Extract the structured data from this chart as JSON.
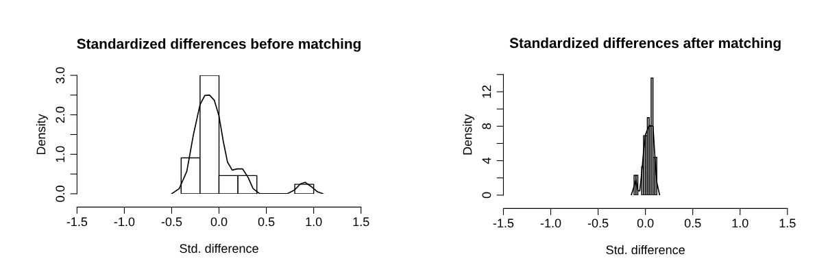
{
  "chart_data": [
    {
      "type": "histogram",
      "title": "Standardized differences before matching",
      "xlabel": "Std. difference",
      "ylabel": "Density",
      "bins": [
        -0.4,
        -0.2,
        0.0,
        0.2,
        0.4,
        0.6,
        0.8,
        1.0
      ],
      "values": [
        0.91,
        3.0,
        0.46,
        0.46,
        0,
        0,
        0.24
      ],
      "color": "#ffffff",
      "series": [
        {
          "type": "line",
          "color": "#000000",
          "x": [
            -0.5,
            -0.42,
            -0.34,
            -0.27,
            -0.2,
            -0.15,
            -0.1,
            -0.05,
            0.0,
            0.045,
            0.09,
            0.14,
            0.19,
            0.25,
            0.31,
            0.36,
            0.43,
            0.72,
            0.8,
            0.86,
            0.91,
            0.97,
            1.04,
            1.1
          ],
          "values": [
            0,
            0.13,
            0.57,
            1.5,
            2.26,
            2.49,
            2.5,
            2.37,
            1.97,
            1.33,
            0.8,
            0.6,
            0.63,
            0.63,
            0.4,
            0.13,
            0,
            0,
            0.1,
            0.25,
            0.29,
            0.19,
            0.05,
            0
          ]
        }
      ],
      "xlim": [
        -1.5,
        1.5
      ],
      "ylim": [
        0,
        3.0
      ],
      "xticks": [
        {
          "value": -1.5,
          "label": "-1.5"
        },
        {
          "value": -1.0,
          "label": "-1.0"
        },
        {
          "value": -0.5,
          "label": "-0.5"
        },
        {
          "value": 0,
          "label": "0.0"
        },
        {
          "value": 0.5,
          "label": "0.5"
        },
        {
          "value": 1.0,
          "label": "1.0"
        },
        {
          "value": 1.5,
          "label": "1.5"
        }
      ],
      "yticks": [
        {
          "value": 0,
          "label": "0.0"
        },
        {
          "value": 0.5,
          "label": null
        },
        {
          "value": 1.0,
          "label": "1.0"
        },
        {
          "value": 1.5,
          "label": null
        },
        {
          "value": 2.0,
          "label": "2.0"
        },
        {
          "value": 2.5,
          "label": null
        },
        {
          "value": 3.0,
          "label": "3.0"
        }
      ]
    },
    {
      "type": "histogram",
      "title": "Standardized differences after matching",
      "xlabel": "Std. difference",
      "ylabel": "Density",
      "bins": [
        -0.12,
        -0.1,
        -0.08,
        -0.06,
        -0.04,
        -0.02,
        0.0,
        0.02,
        0.04,
        0.06,
        0.08,
        0.1,
        0.12
      ],
      "values": [
        2.3,
        2.3,
        0,
        0,
        3.3,
        6.9,
        6.9,
        9.0,
        8.0,
        13.6,
        4.4,
        4.4
      ],
      "color": "#bebebe",
      "series": [
        {
          "type": "line",
          "color": "#000000",
          "x": [
            -0.15,
            -0.12,
            -0.1,
            -0.08,
            -0.06,
            -0.04,
            -0.02,
            0.0,
            0.04,
            0.08,
            0.1,
            0.12,
            0.15
          ],
          "values": [
            0,
            1.0,
            1.8,
            0.5,
            0.5,
            2.5,
            5.0,
            7.0,
            8.1,
            8.0,
            4.5,
            1.5,
            0
          ]
        }
      ],
      "xlim": [
        -1.5,
        1.5
      ],
      "ylim": [
        0,
        14
      ],
      "xticks": [
        {
          "value": -1.5,
          "label": "-1.5"
        },
        {
          "value": -1.0,
          "label": "-1.0"
        },
        {
          "value": -0.5,
          "label": "-0.5"
        },
        {
          "value": 0,
          "label": "0.0"
        },
        {
          "value": 0.5,
          "label": "0.5"
        },
        {
          "value": 1.0,
          "label": "1.0"
        },
        {
          "value": 1.5,
          "label": "1.5"
        }
      ],
      "yticks": [
        0,
        {
          "value": 2,
          "label": null
        },
        4,
        {
          "value": 6,
          "label": null
        },
        8,
        {
          "value": 10,
          "label": null
        },
        12,
        {
          "value": 14,
          "label": null
        }
      ]
    }
  ]
}
